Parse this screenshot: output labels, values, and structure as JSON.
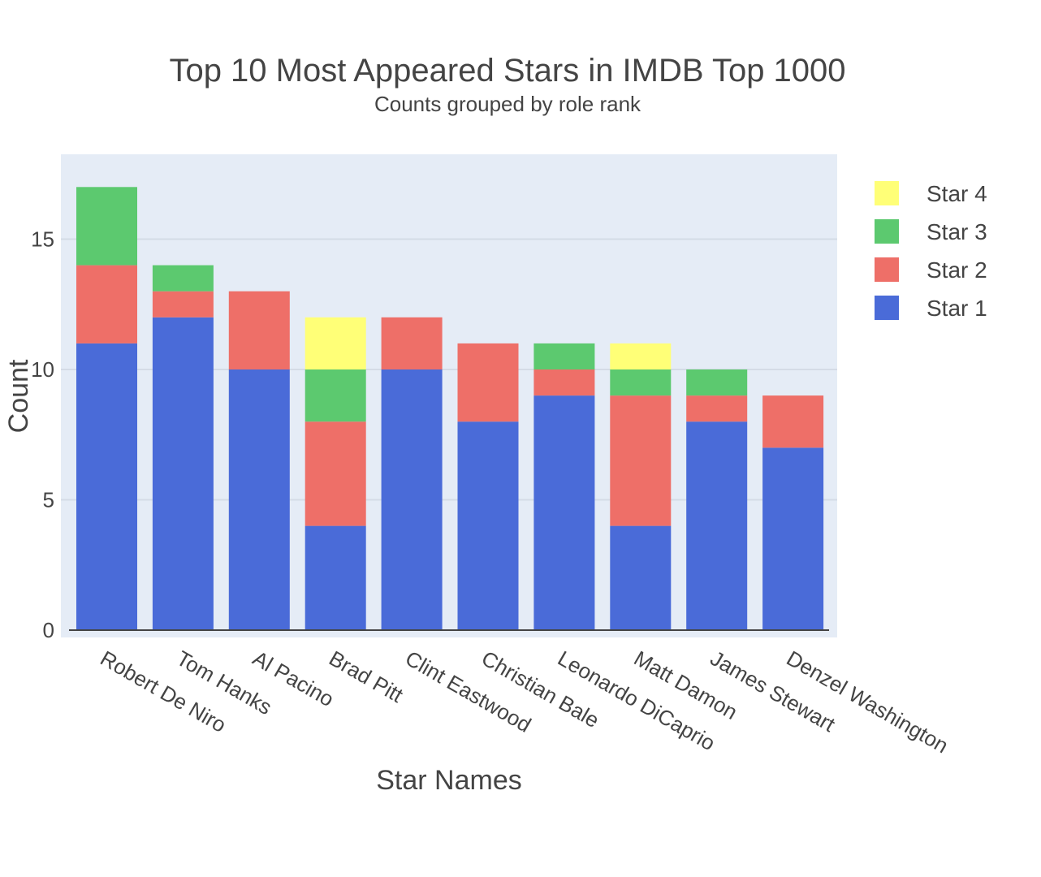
{
  "chart_data": {
    "type": "bar",
    "barmode": "stack",
    "title": "Top 10 Most Appeared Stars in IMDB Top 1000",
    "subtitle": "Counts grouped by role rank",
    "xlabel": "Star Names",
    "ylabel": "Count",
    "ylim": [
      0,
      18
    ],
    "yticks": [
      0,
      5,
      10,
      15
    ],
    "grid": true,
    "legend_position": "right",
    "categories": [
      "Robert De Niro",
      "Tom Hanks",
      "Al Pacino",
      "Brad Pitt",
      "Clint Eastwood",
      "Christian Bale",
      "Leonardo DiCaprio",
      "Matt Damon",
      "James Stewart",
      "Denzel Washington"
    ],
    "series": [
      {
        "name": "Star 1",
        "color": "#4a6bd8",
        "values": [
          11,
          12,
          10,
          4,
          10,
          8,
          9,
          4,
          8,
          7
        ]
      },
      {
        "name": "Star 2",
        "color": "#ee6f68",
        "values": [
          3,
          1,
          3,
          4,
          2,
          3,
          1,
          5,
          1,
          2
        ]
      },
      {
        "name": "Star 3",
        "color": "#5cc96f",
        "values": [
          3,
          1,
          0,
          2,
          0,
          0,
          1,
          1,
          1,
          0
        ]
      },
      {
        "name": "Star 4",
        "color": "#ffff77",
        "values": [
          0,
          0,
          0,
          2,
          0,
          0,
          0,
          1,
          0,
          0
        ]
      }
    ],
    "plot_background": "#e5ecf6"
  }
}
